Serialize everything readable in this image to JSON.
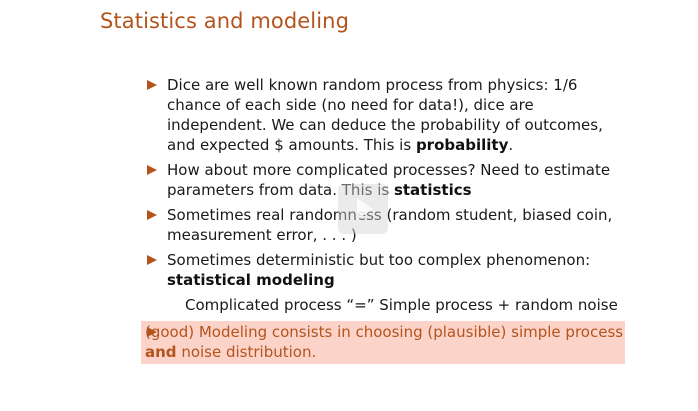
{
  "slide": {
    "title": "Statistics and modeling",
    "bullets": [
      {
        "parts": [
          "Dice are well known random process from physics: 1/6 chance of each side (no need for data!), dice are independent. We can deduce the probability of outcomes, and expected $ amounts. This is ",
          "probability",
          "."
        ]
      },
      {
        "parts": [
          "How about more complicated processes? Need to estimate parameters from data. This is ",
          "statistics",
          ""
        ]
      },
      {
        "parts": [
          "Sometimes real randomness (random student, biased coin, measurement error, . . . )"
        ]
      },
      {
        "parts": [
          "Sometimes deterministic but too complex phenomenon: ",
          "statistical modeling",
          ""
        ]
      }
    ],
    "formula": "Complicated process “=” Simple process + random noise",
    "highlight_bullet": {
      "parts": [
        "(good) Modeling consists in choosing (plausible) simple process ",
        "and",
        " noise distribution."
      ]
    }
  },
  "colors": {
    "accent": "#b4541c",
    "highlight_bg": "#fbd3c9",
    "text": "#1a1a1a"
  },
  "icons": {
    "bullet": "triangle-bullet-icon",
    "overlay": "play-icon"
  }
}
